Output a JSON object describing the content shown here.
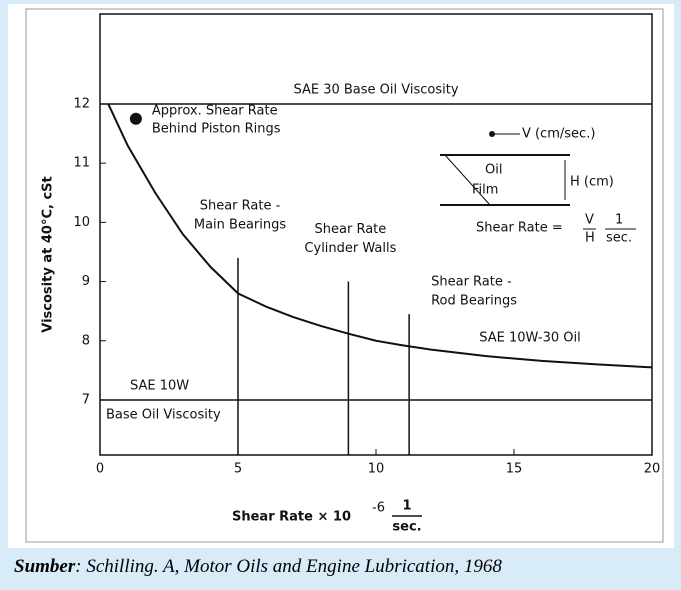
{
  "chart_data": {
    "type": "line",
    "xlabel": "Shear Rate × 10",
    "xlabel_exponent": "-6",
    "xlabel_fraction": [
      "1",
      "sec."
    ],
    "ylabel": "Viscosity at 40°C, cSt",
    "xlim": [
      0,
      20
    ],
    "xticks": [
      0,
      5,
      10,
      15,
      20
    ],
    "ylim": [
      6.07,
      13.52
    ],
    "yticks": [
      7,
      8,
      9,
      10,
      11,
      12
    ],
    "x": [
      0.3,
      1,
      2,
      3,
      4,
      5,
      6,
      7,
      8,
      9,
      10,
      11,
      12,
      14,
      16,
      18,
      20
    ],
    "series": [
      {
        "name": "SAE 10W-30 Oil",
        "color": "#111111",
        "values": [
          12,
          11.3,
          10.5,
          9.8,
          9.25,
          8.8,
          8.58,
          8.4,
          8.25,
          8.12,
          8.0,
          7.92,
          7.85,
          7.74,
          7.66,
          7.6,
          7.55
        ]
      }
    ],
    "hlines": [
      {
        "value": 12,
        "label": "SAE 30 Base Oil Viscosity"
      },
      {
        "value": 7,
        "label": "SAE 10W",
        "label_below": "Base Oil Viscosity"
      }
    ],
    "vlines": [
      {
        "x": 5,
        "top": 9.4,
        "label": [
          "Shear Rate -",
          "Main Bearings"
        ]
      },
      {
        "x": 9,
        "top": 9.0,
        "label": [
          "Shear Rate",
          "Cylinder Walls"
        ]
      },
      {
        "x": 11.2,
        "top": 8.45,
        "label": [
          "Shear Rate -",
          "Rod Bearings"
        ]
      }
    ],
    "point": {
      "x": 1.3,
      "y": 11.75,
      "label": [
        "Approx. Shear Rate",
        "Behind Piston Rings"
      ]
    },
    "inset": {
      "velocity": "V (cm/sec.)",
      "oil": "Oil",
      "film": "Film",
      "height": "H (cm)",
      "formula": "Shear Rate =",
      "v": "V",
      "h": "H",
      "one": "1",
      "sec": "sec."
    }
  },
  "caption": {
    "source": "Sumber",
    "text": ": Schilling. A, Motor Oils and Engine Lubrication, 1968"
  }
}
